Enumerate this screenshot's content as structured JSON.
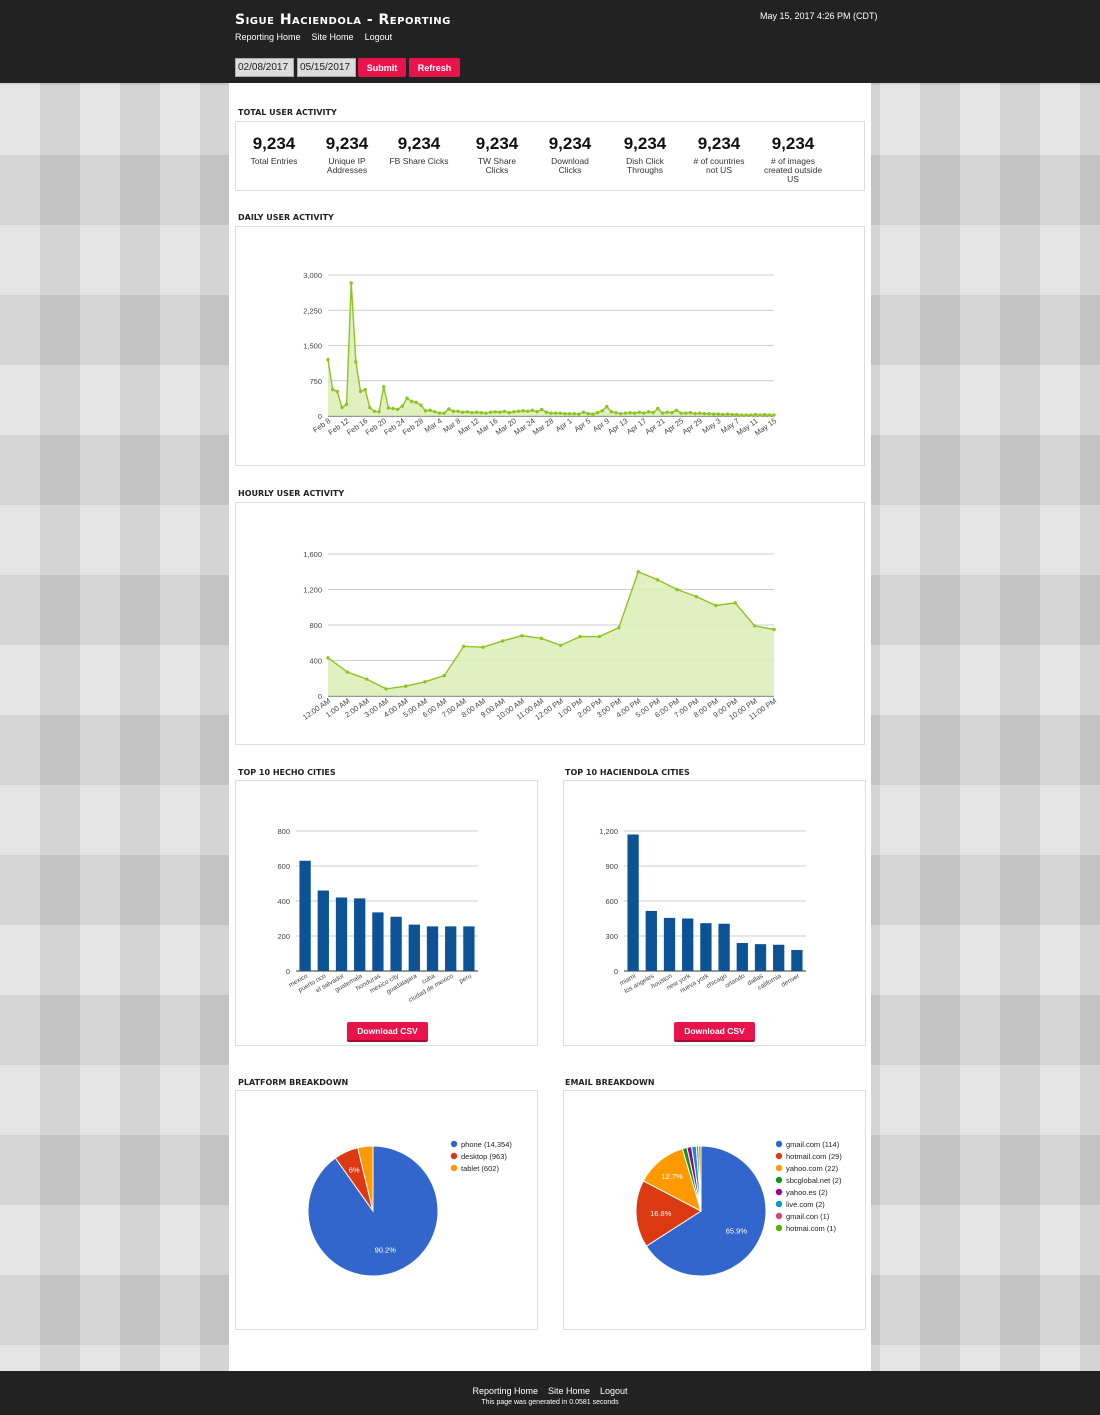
{
  "header": {
    "title": "Sigue Haciendola - Reporting",
    "datetime": "May 15, 2017 4:26 PM (CDT)",
    "nav": [
      "Reporting Home",
      "Site Home",
      "Logout"
    ],
    "start_date": "02/08/2017",
    "end_date": "05/15/2017",
    "submit_label": "Submit",
    "refresh_label": "Refresh"
  },
  "total_activity": {
    "title": "Total User Activity",
    "stats": [
      {
        "value": "9,234",
        "label": "Total Entries"
      },
      {
        "value": "9,234",
        "label": "Unique IP Addresses"
      },
      {
        "value": "9,234",
        "label": "FB Share Cicks"
      },
      {
        "value": "9,234",
        "label": "TW Share Clicks"
      },
      {
        "value": "9,234",
        "label": "Download Clicks"
      },
      {
        "value": "9,234",
        "label": "Dish Click Throughs"
      },
      {
        "value": "9,234",
        "label": "# of countries not US"
      },
      {
        "value": "9,234",
        "label": "# of images created outside US"
      }
    ]
  },
  "daily": {
    "title": "Daily User Activity"
  },
  "hourly": {
    "title": "Hourly User Activity"
  },
  "hecho": {
    "title": "Top 10 Hecho Cities",
    "csv_label": "Download CSV"
  },
  "haciendola": {
    "title": "Top 10 Haciendola Cities",
    "csv_label": "Download CSV"
  },
  "platform": {
    "title": "Platform Breakdown"
  },
  "email": {
    "title": "Email Breakdown"
  },
  "footer": {
    "nav": [
      "Reporting Home",
      "Site Home",
      "Logout"
    ],
    "note": "This page was generated in 0.0581 seconds"
  },
  "colors": {
    "accent": "#e8134a",
    "line": "#8cc420",
    "area": "#dcedb5",
    "bar": "#0b5394"
  },
  "chart_data": [
    {
      "type": "area",
      "id": "daily",
      "ylim": [
        0,
        3000
      ],
      "yticks": [
        "0",
        "750",
        "1,500",
        "2,250",
        "3,000"
      ],
      "xticks": [
        "Feb 8",
        "Feb 12",
        "Feb 16",
        "Feb 20",
        "Feb 24",
        "Feb 28",
        "Mar 4",
        "Mar 8",
        "Mar 12",
        "Mar 16",
        "Mar 20",
        "Mar 24",
        "Mar 28",
        "Apr 1",
        "Apr 5",
        "Apr 9",
        "Apr 13",
        "Apr 17",
        "Apr 21",
        "Apr 25",
        "Apr 29",
        "May 3",
        "May 7",
        "May 11",
        "May 15"
      ],
      "values": [
        1200,
        560,
        520,
        180,
        250,
        2830,
        1150,
        520,
        560,
        180,
        100,
        90,
        620,
        170,
        160,
        140,
        210,
        380,
        310,
        290,
        230,
        110,
        120,
        90,
        60,
        60,
        150,
        100,
        100,
        80,
        90,
        70,
        80,
        70,
        60,
        80,
        90,
        80,
        100,
        70,
        90,
        100,
        110,
        100,
        120,
        90,
        140,
        80,
        60,
        60,
        60,
        50,
        50,
        50,
        40,
        80,
        50,
        40,
        70,
        110,
        200,
        90,
        70,
        50,
        60,
        70,
        60,
        80,
        60,
        90,
        70,
        160,
        60,
        80,
        70,
        120,
        60,
        60,
        70,
        50,
        60,
        50,
        50,
        40,
        40,
        30,
        40,
        30,
        30,
        20,
        20,
        20,
        30,
        20,
        30,
        20,
        20
      ]
    },
    {
      "type": "area",
      "id": "hourly",
      "ylim": [
        0,
        1600
      ],
      "yticks": [
        "0",
        "400",
        "800",
        "1,200",
        "1,600"
      ],
      "categories": [
        "12:00 AM",
        "1:00 AM",
        "2:00 AM",
        "3:00 AM",
        "4:00 AM",
        "5:00 AM",
        "6:00 AM",
        "7:00 AM",
        "8:00 AM",
        "9:00 AM",
        "10:00 AM",
        "11:00 AM",
        "12:00 PM",
        "1:00 PM",
        "2:00 PM",
        "3:00 PM",
        "4:00 PM",
        "5:00 PM",
        "6:00 PM",
        "7:00 PM",
        "8:00 PM",
        "9:00 PM",
        "10:00 PM",
        "11:00 PM"
      ],
      "values": [
        430,
        270,
        190,
        80,
        110,
        160,
        230,
        560,
        550,
        620,
        680,
        650,
        570,
        670,
        670,
        770,
        1400,
        1310,
        1200,
        1120,
        1020,
        1050,
        790,
        750
      ]
    },
    {
      "type": "bar",
      "id": "hecho",
      "ylim": [
        0,
        800
      ],
      "yticks": [
        "0",
        "200",
        "400",
        "600",
        "800"
      ],
      "categories": [
        "mexico",
        "puerto rico",
        "el salvador",
        "guatemala",
        "honduras",
        "mexico city",
        "guadalajara",
        "cuba",
        "ciudad de mexico",
        "peru"
      ],
      "values": [
        630,
        460,
        420,
        415,
        335,
        310,
        265,
        255,
        255,
        255
      ]
    },
    {
      "type": "bar",
      "id": "haciendola",
      "ylim": [
        0,
        1200
      ],
      "yticks": [
        "0",
        "300",
        "600",
        "900",
        "1,200"
      ],
      "categories": [
        "miami",
        "los angeles",
        "houston",
        "new york",
        "nueva york",
        "chicago",
        "orlando",
        "dallas",
        "california",
        "denver"
      ],
      "values": [
        1170,
        515,
        455,
        450,
        410,
        405,
        240,
        230,
        225,
        180
      ]
    },
    {
      "type": "pie",
      "id": "platform",
      "slices": [
        {
          "label": "phone (14,354)",
          "value": 14354,
          "color": "#3366cc",
          "pct": "90.2%"
        },
        {
          "label": "desktop (963)",
          "value": 963,
          "color": "#dc3912",
          "pct": "6%"
        },
        {
          "label": "tablet (602)",
          "value": 602,
          "color": "#ff9900",
          "pct": ""
        }
      ]
    },
    {
      "type": "pie",
      "id": "email",
      "slices": [
        {
          "label": "gmail.com (114)",
          "value": 114,
          "color": "#3366cc",
          "pct": "65.9%"
        },
        {
          "label": "hotmail.com (29)",
          "value": 29,
          "color": "#dc3912",
          "pct": "16.8%"
        },
        {
          "label": "yahoo.com (22)",
          "value": 22,
          "color": "#ff9900",
          "pct": "12.7%"
        },
        {
          "label": "sbcglobal.net (2)",
          "value": 2,
          "color": "#109618",
          "pct": ""
        },
        {
          "label": "yahoo.es (2)",
          "value": 2,
          "color": "#990099",
          "pct": ""
        },
        {
          "label": "live.com (2)",
          "value": 2,
          "color": "#0099c6",
          "pct": ""
        },
        {
          "label": "gmail.con (1)",
          "value": 1,
          "color": "#dd4477",
          "pct": ""
        },
        {
          "label": "hotmai.com (1)",
          "value": 1,
          "color": "#66aa00",
          "pct": ""
        }
      ]
    }
  ]
}
